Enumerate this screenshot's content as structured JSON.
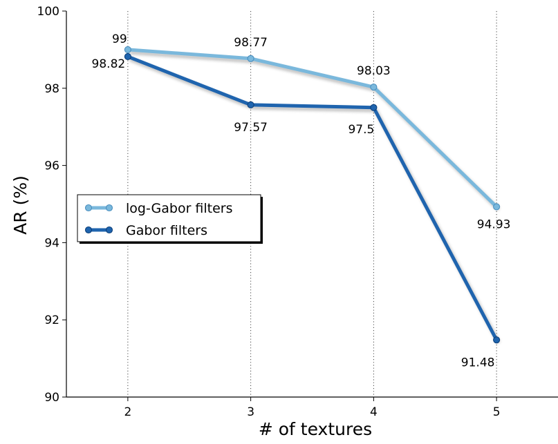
{
  "chart_data": {
    "type": "line",
    "x": [
      2,
      3,
      4,
      5
    ],
    "series": [
      {
        "name": "log-Gabor filters",
        "values": [
          99,
          98.77,
          98.03,
          94.93
        ],
        "labels": [
          "99",
          "98.77",
          "98.03",
          "94.93"
        ],
        "color": "#7ab8dc",
        "edge_color": "#4a8fbf"
      },
      {
        "name": "Gabor filters",
        "values": [
          98.82,
          97.57,
          97.5,
          91.48
        ],
        "labels": [
          "98.82",
          "97.57",
          "97.5",
          "91.48"
        ],
        "color": "#1f64ae",
        "edge_color": "#0b3f7a"
      }
    ],
    "xlabel": "# of textures",
    "ylabel": "AR (%)",
    "xlim": [
      1.5,
      5.5
    ],
    "ylim": [
      90,
      100
    ],
    "xticks": [
      "2",
      "3",
      "4",
      "5"
    ],
    "yticks": [
      "90",
      "92",
      "94",
      "96",
      "98",
      "100"
    ],
    "vertical_grid": true,
    "horizontal_grid": false,
    "legend_position": "center-left"
  }
}
